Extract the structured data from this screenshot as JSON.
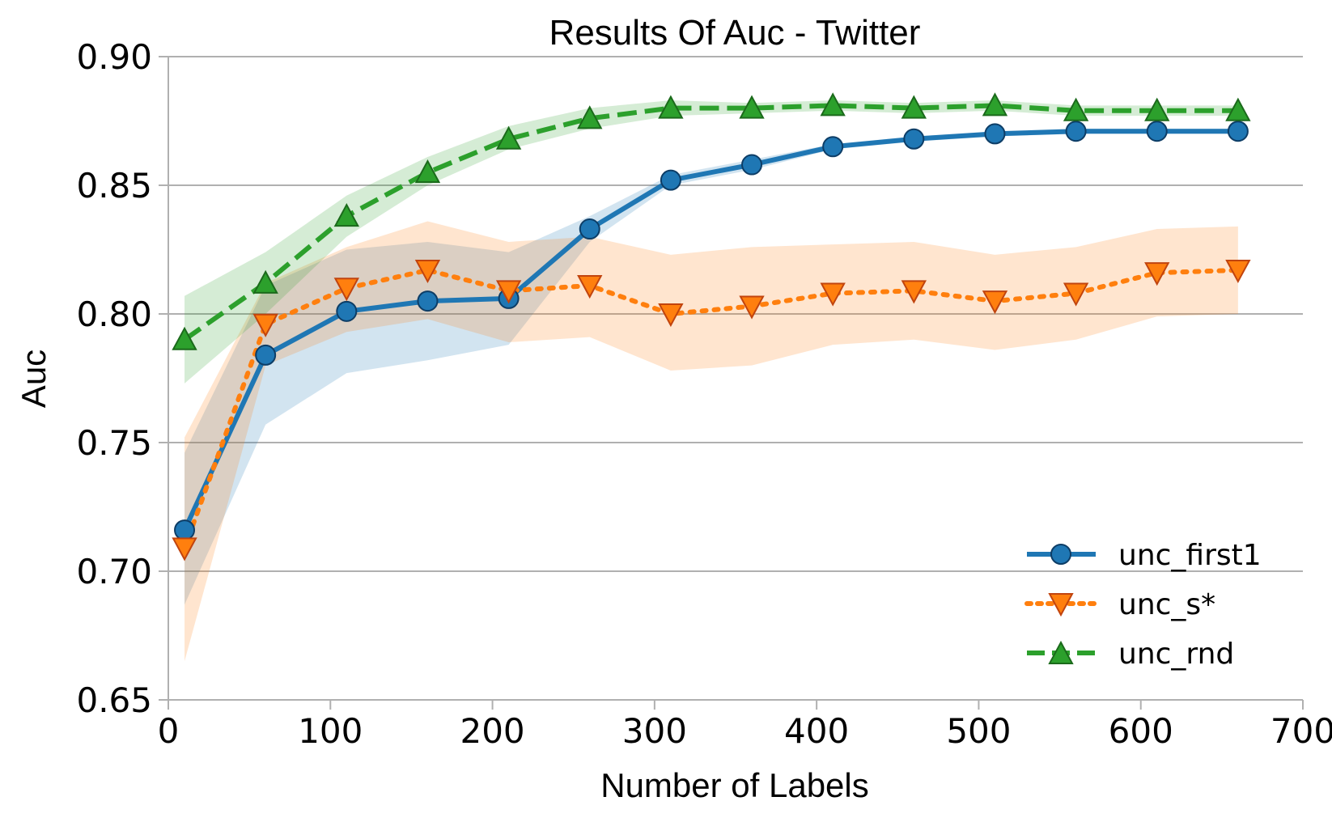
{
  "chart_data": {
    "type": "line",
    "title": "Results Of Auc - Twitter",
    "xlabel": "Number of Labels",
    "ylabel": "Auc",
    "xlim": [
      0,
      700
    ],
    "ylim": [
      0.65,
      0.9
    ],
    "xticks": [
      "0",
      "100",
      "200",
      "300",
      "400",
      "500",
      "600",
      "700"
    ],
    "xtick_values": [
      0,
      100,
      200,
      300,
      400,
      500,
      600,
      700
    ],
    "yticks": [
      "0.65",
      "0.70",
      "0.75",
      "0.80",
      "0.85",
      "0.90"
    ],
    "ytick_values": [
      0.65,
      0.7,
      0.75,
      0.8,
      0.85,
      0.9
    ],
    "grid": "horizontal",
    "legend_position": "bottom-right",
    "x": [
      10,
      60,
      110,
      160,
      210,
      260,
      310,
      360,
      410,
      460,
      510,
      560,
      610,
      660
    ],
    "series": [
      {
        "name": "unc_first1",
        "color": "#1f77b4",
        "marker": "circle",
        "linestyle": "solid",
        "values": [
          0.716,
          0.784,
          0.801,
          0.805,
          0.806,
          0.833,
          0.852,
          0.858,
          0.865,
          0.868,
          0.87,
          0.871,
          0.871,
          0.871
        ],
        "lower": [
          0.687,
          0.757,
          0.777,
          0.782,
          0.788,
          0.828,
          0.85,
          0.856,
          0.864,
          0.867,
          0.869,
          0.87,
          0.87,
          0.87
        ],
        "upper": [
          0.746,
          0.811,
          0.825,
          0.828,
          0.824,
          0.838,
          0.854,
          0.86,
          0.866,
          0.869,
          0.871,
          0.872,
          0.872,
          0.872
        ]
      },
      {
        "name": "unc_s*",
        "color": "#ff7f0e",
        "marker": "triangle-down",
        "linestyle": "dotted",
        "values": [
          0.709,
          0.796,
          0.81,
          0.817,
          0.809,
          0.811,
          0.8,
          0.803,
          0.808,
          0.809,
          0.805,
          0.808,
          0.816,
          0.817
        ],
        "lower": [
          0.665,
          0.78,
          0.793,
          0.798,
          0.789,
          0.791,
          0.778,
          0.78,
          0.788,
          0.79,
          0.786,
          0.79,
          0.799,
          0.8
        ],
        "upper": [
          0.752,
          0.812,
          0.826,
          0.836,
          0.828,
          0.83,
          0.823,
          0.826,
          0.827,
          0.828,
          0.823,
          0.826,
          0.833,
          0.834
        ]
      },
      {
        "name": "unc_rnd",
        "color": "#2ca02c",
        "marker": "triangle-up",
        "linestyle": "dashed",
        "values": [
          0.79,
          0.812,
          0.838,
          0.855,
          0.868,
          0.876,
          0.88,
          0.88,
          0.881,
          0.88,
          0.881,
          0.879,
          0.879,
          0.879
        ],
        "lower": [
          0.773,
          0.8,
          0.83,
          0.85,
          0.864,
          0.872,
          0.877,
          0.878,
          0.879,
          0.878,
          0.879,
          0.877,
          0.877,
          0.877
        ],
        "upper": [
          0.807,
          0.824,
          0.846,
          0.861,
          0.873,
          0.88,
          0.883,
          0.882,
          0.883,
          0.882,
          0.883,
          0.881,
          0.881,
          0.881
        ]
      }
    ],
    "colors": {
      "grid": "#b0b0b0",
      "axis": "#b0b0b0",
      "marker_edge": {
        "unc_first1": "#0d3d66",
        "unc_s*": "#c1440e",
        "unc_rnd": "#1b6a1b"
      }
    }
  }
}
